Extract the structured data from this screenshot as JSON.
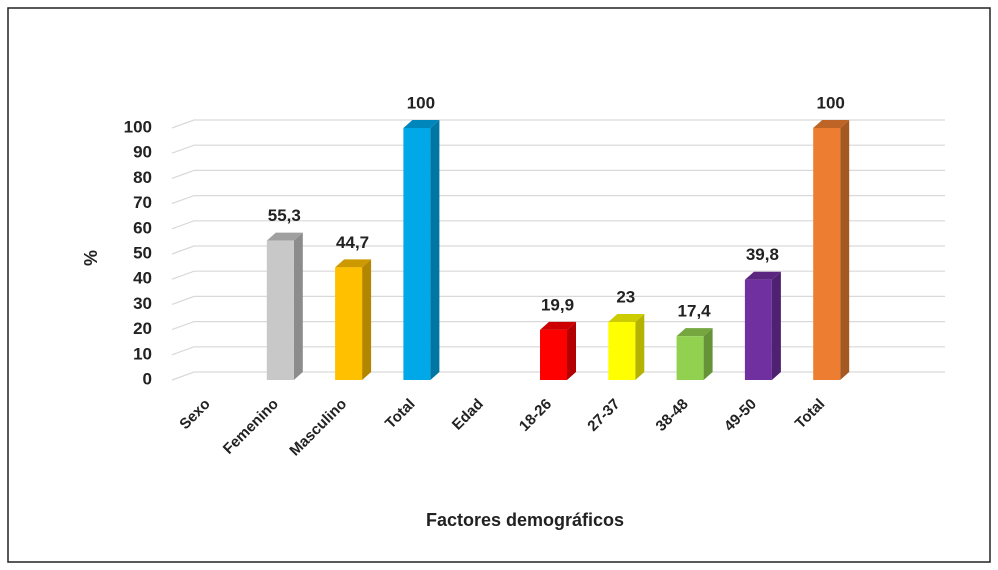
{
  "chart_data": {
    "type": "bar",
    "categories": [
      "Sexo",
      "Femenino",
      "Masculino",
      "Total",
      "Edad",
      "18-26",
      "27-37",
      "38-48",
      "49-50",
      "Total"
    ],
    "values": [
      null,
      55.3,
      44.7,
      100,
      null,
      19.9,
      23,
      17.4,
      39.8,
      100
    ],
    "value_labels": [
      null,
      "55,3",
      "44,7",
      "100",
      null,
      "19,9",
      "23",
      "17,4",
      "39,8",
      "100"
    ],
    "colors": [
      null,
      "#c8c8c8",
      "#ffc000",
      "#00a8e8",
      null,
      "#ff0000",
      "#ffff00",
      "#92d050",
      "#7030a0",
      "#ed7d31"
    ],
    "ylim": [
      0,
      100
    ],
    "yticks": [
      0,
      10,
      20,
      30,
      40,
      50,
      60,
      70,
      80,
      90,
      100
    ],
    "y_axis_label": "%",
    "x_axis_label": "Factores demográficos",
    "grid": true
  }
}
